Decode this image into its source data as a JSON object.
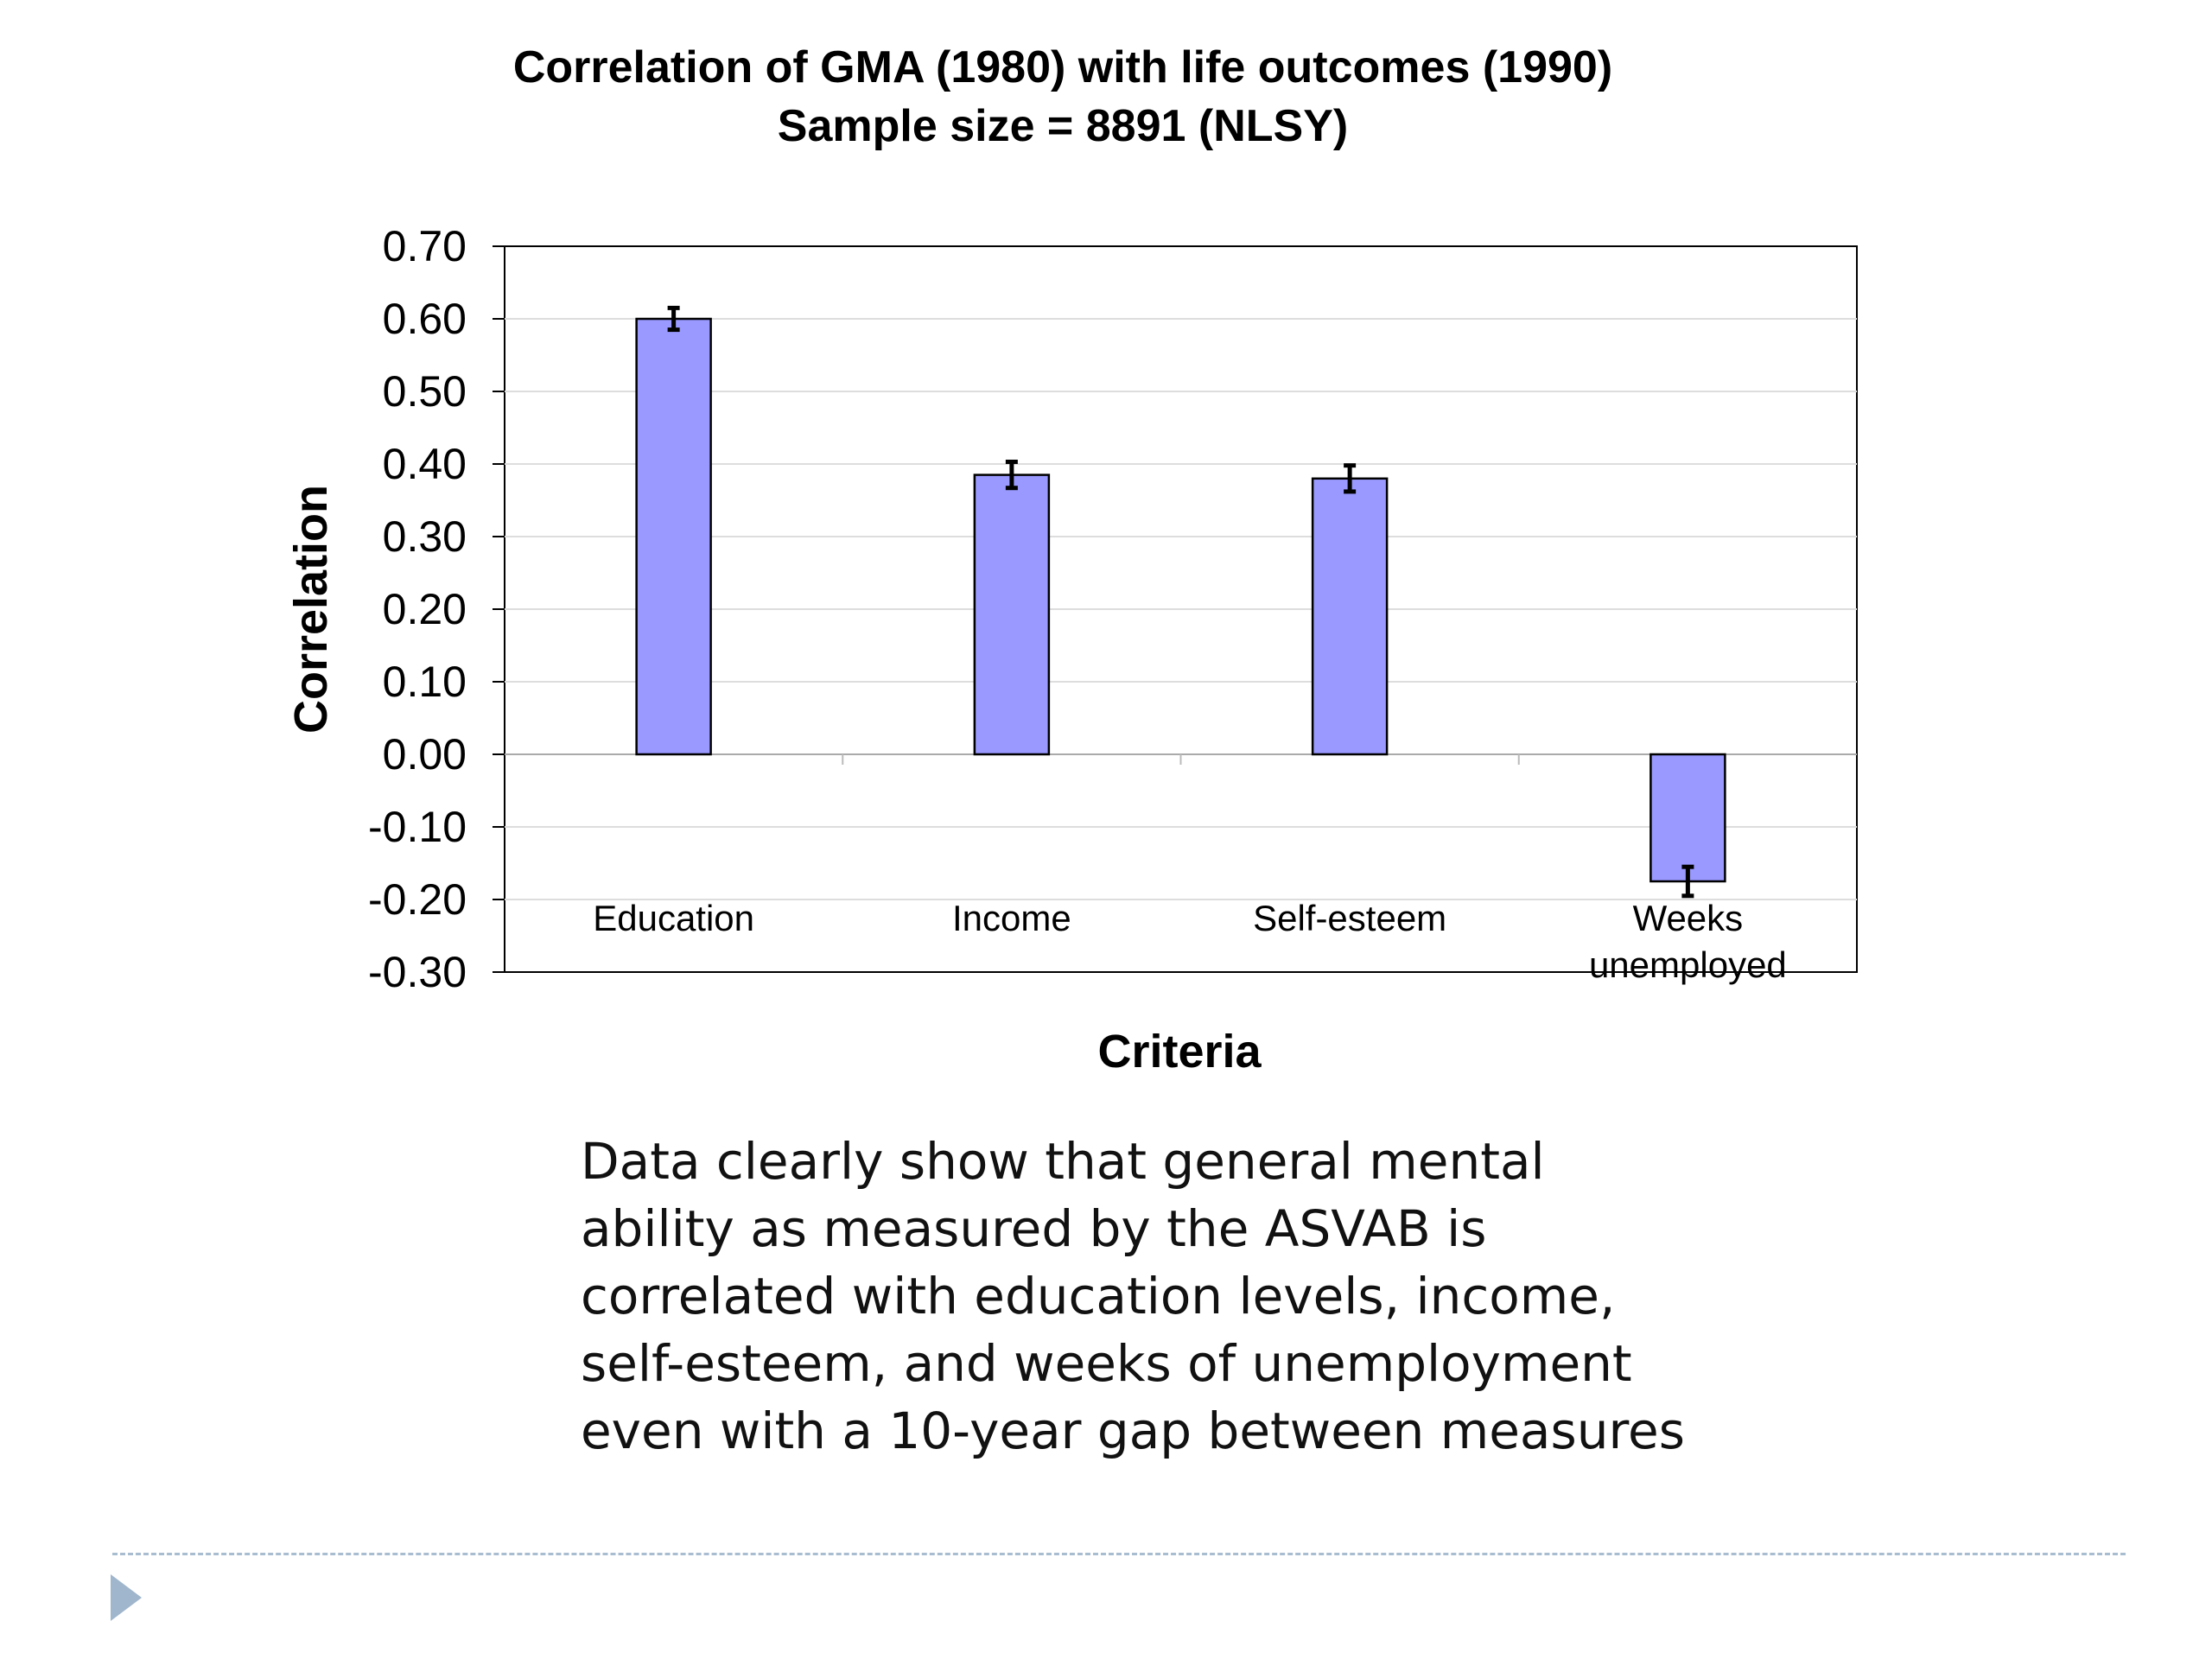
{
  "slide": {
    "caption": "Data clearly show that general mental ability as measured by the ASVAB is correlated with education levels, income, self-esteem, and weeks of unemployment even with a 10-year gap between measures",
    "nav_icon": "play-triangle-icon",
    "divider_color": "#a9bdd1"
  },
  "chart_data": {
    "type": "bar",
    "title": "Correlation of GMA (1980) with life outcomes (1990)",
    "subtitle": "Sample size = 8891 (NLSY)",
    "xlabel": "Criteria",
    "ylabel": "Correlation",
    "categories": [
      "Education",
      "Income",
      "Self-esteem",
      "Weeks unemployed"
    ],
    "category_lines": [
      [
        "Education"
      ],
      [
        "Income"
      ],
      [
        "Self-esteem"
      ],
      [
        "Weeks",
        "unemployed"
      ]
    ],
    "values": [
      0.6,
      0.385,
      0.38,
      -0.175
    ],
    "error": [
      0.015,
      0.018,
      0.018,
      0.02
    ],
    "ylim": [
      -0.3,
      0.7
    ],
    "yticks": [
      "0.70",
      "0.60",
      "0.50",
      "0.40",
      "0.30",
      "0.20",
      "0.10",
      "0.00",
      "-0.10",
      "-0.20",
      "-0.30"
    ],
    "grid": true,
    "legend": "none",
    "bar_color": "#9999ff",
    "bar_edge_color": "#000000",
    "gridline_color": "#dddddd"
  }
}
